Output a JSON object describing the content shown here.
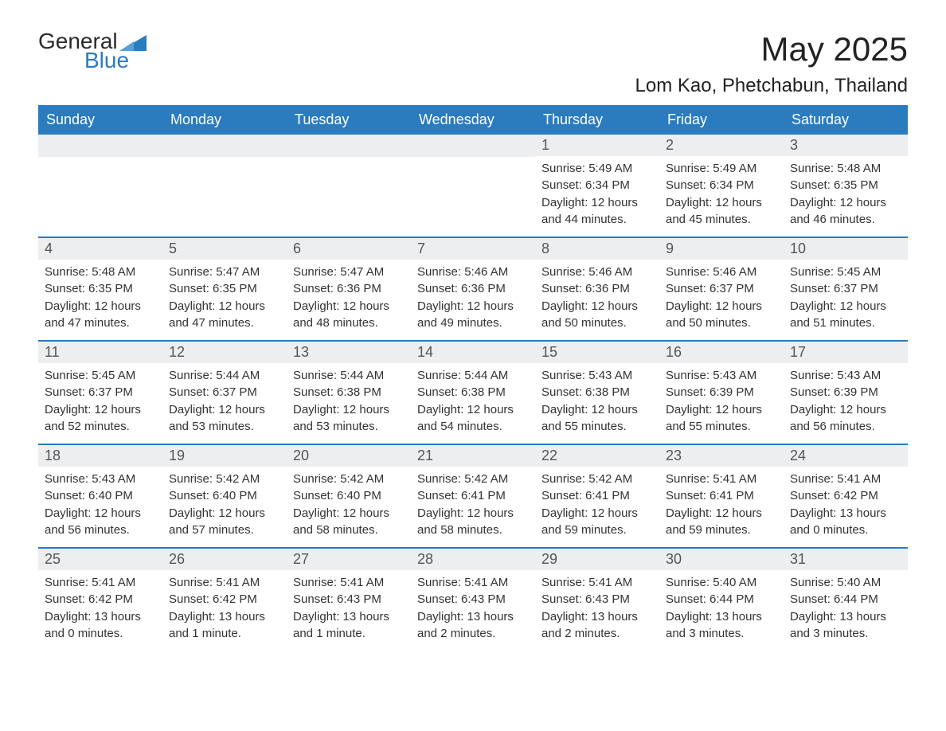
{
  "logo": {
    "text_general": "General",
    "text_blue": "Blue"
  },
  "title": "May 2025",
  "location": "Lom Kao, Phetchabun, Thailand",
  "colors": {
    "header_bg": "#2b7bbf",
    "header_text": "#ffffff",
    "daynum_bg": "#eceeef",
    "daynum_text": "#555555",
    "body_text": "#333333",
    "page_bg": "#ffffff",
    "week_border": "#2b7bbf",
    "logo_blue": "#2b7bbf"
  },
  "typography": {
    "title_fontsize": 42,
    "location_fontsize": 24,
    "dow_fontsize": 18,
    "daynum_fontsize": 18,
    "body_fontsize": 15
  },
  "days_of_week": [
    "Sunday",
    "Monday",
    "Tuesday",
    "Wednesday",
    "Thursday",
    "Friday",
    "Saturday"
  ],
  "weeks": [
    [
      null,
      null,
      null,
      null,
      {
        "n": "1",
        "sunrise": "Sunrise: 5:49 AM",
        "sunset": "Sunset: 6:34 PM",
        "dl1": "Daylight: 12 hours",
        "dl2": "and 44 minutes."
      },
      {
        "n": "2",
        "sunrise": "Sunrise: 5:49 AM",
        "sunset": "Sunset: 6:34 PM",
        "dl1": "Daylight: 12 hours",
        "dl2": "and 45 minutes."
      },
      {
        "n": "3",
        "sunrise": "Sunrise: 5:48 AM",
        "sunset": "Sunset: 6:35 PM",
        "dl1": "Daylight: 12 hours",
        "dl2": "and 46 minutes."
      }
    ],
    [
      {
        "n": "4",
        "sunrise": "Sunrise: 5:48 AM",
        "sunset": "Sunset: 6:35 PM",
        "dl1": "Daylight: 12 hours",
        "dl2": "and 47 minutes."
      },
      {
        "n": "5",
        "sunrise": "Sunrise: 5:47 AM",
        "sunset": "Sunset: 6:35 PM",
        "dl1": "Daylight: 12 hours",
        "dl2": "and 47 minutes."
      },
      {
        "n": "6",
        "sunrise": "Sunrise: 5:47 AM",
        "sunset": "Sunset: 6:36 PM",
        "dl1": "Daylight: 12 hours",
        "dl2": "and 48 minutes."
      },
      {
        "n": "7",
        "sunrise": "Sunrise: 5:46 AM",
        "sunset": "Sunset: 6:36 PM",
        "dl1": "Daylight: 12 hours",
        "dl2": "and 49 minutes."
      },
      {
        "n": "8",
        "sunrise": "Sunrise: 5:46 AM",
        "sunset": "Sunset: 6:36 PM",
        "dl1": "Daylight: 12 hours",
        "dl2": "and 50 minutes."
      },
      {
        "n": "9",
        "sunrise": "Sunrise: 5:46 AM",
        "sunset": "Sunset: 6:37 PM",
        "dl1": "Daylight: 12 hours",
        "dl2": "and 50 minutes."
      },
      {
        "n": "10",
        "sunrise": "Sunrise: 5:45 AM",
        "sunset": "Sunset: 6:37 PM",
        "dl1": "Daylight: 12 hours",
        "dl2": "and 51 minutes."
      }
    ],
    [
      {
        "n": "11",
        "sunrise": "Sunrise: 5:45 AM",
        "sunset": "Sunset: 6:37 PM",
        "dl1": "Daylight: 12 hours",
        "dl2": "and 52 minutes."
      },
      {
        "n": "12",
        "sunrise": "Sunrise: 5:44 AM",
        "sunset": "Sunset: 6:37 PM",
        "dl1": "Daylight: 12 hours",
        "dl2": "and 53 minutes."
      },
      {
        "n": "13",
        "sunrise": "Sunrise: 5:44 AM",
        "sunset": "Sunset: 6:38 PM",
        "dl1": "Daylight: 12 hours",
        "dl2": "and 53 minutes."
      },
      {
        "n": "14",
        "sunrise": "Sunrise: 5:44 AM",
        "sunset": "Sunset: 6:38 PM",
        "dl1": "Daylight: 12 hours",
        "dl2": "and 54 minutes."
      },
      {
        "n": "15",
        "sunrise": "Sunrise: 5:43 AM",
        "sunset": "Sunset: 6:38 PM",
        "dl1": "Daylight: 12 hours",
        "dl2": "and 55 minutes."
      },
      {
        "n": "16",
        "sunrise": "Sunrise: 5:43 AM",
        "sunset": "Sunset: 6:39 PM",
        "dl1": "Daylight: 12 hours",
        "dl2": "and 55 minutes."
      },
      {
        "n": "17",
        "sunrise": "Sunrise: 5:43 AM",
        "sunset": "Sunset: 6:39 PM",
        "dl1": "Daylight: 12 hours",
        "dl2": "and 56 minutes."
      }
    ],
    [
      {
        "n": "18",
        "sunrise": "Sunrise: 5:43 AM",
        "sunset": "Sunset: 6:40 PM",
        "dl1": "Daylight: 12 hours",
        "dl2": "and 56 minutes."
      },
      {
        "n": "19",
        "sunrise": "Sunrise: 5:42 AM",
        "sunset": "Sunset: 6:40 PM",
        "dl1": "Daylight: 12 hours",
        "dl2": "and 57 minutes."
      },
      {
        "n": "20",
        "sunrise": "Sunrise: 5:42 AM",
        "sunset": "Sunset: 6:40 PM",
        "dl1": "Daylight: 12 hours",
        "dl2": "and 58 minutes."
      },
      {
        "n": "21",
        "sunrise": "Sunrise: 5:42 AM",
        "sunset": "Sunset: 6:41 PM",
        "dl1": "Daylight: 12 hours",
        "dl2": "and 58 minutes."
      },
      {
        "n": "22",
        "sunrise": "Sunrise: 5:42 AM",
        "sunset": "Sunset: 6:41 PM",
        "dl1": "Daylight: 12 hours",
        "dl2": "and 59 minutes."
      },
      {
        "n": "23",
        "sunrise": "Sunrise: 5:41 AM",
        "sunset": "Sunset: 6:41 PM",
        "dl1": "Daylight: 12 hours",
        "dl2": "and 59 minutes."
      },
      {
        "n": "24",
        "sunrise": "Sunrise: 5:41 AM",
        "sunset": "Sunset: 6:42 PM",
        "dl1": "Daylight: 13 hours",
        "dl2": "and 0 minutes."
      }
    ],
    [
      {
        "n": "25",
        "sunrise": "Sunrise: 5:41 AM",
        "sunset": "Sunset: 6:42 PM",
        "dl1": "Daylight: 13 hours",
        "dl2": "and 0 minutes."
      },
      {
        "n": "26",
        "sunrise": "Sunrise: 5:41 AM",
        "sunset": "Sunset: 6:42 PM",
        "dl1": "Daylight: 13 hours",
        "dl2": "and 1 minute."
      },
      {
        "n": "27",
        "sunrise": "Sunrise: 5:41 AM",
        "sunset": "Sunset: 6:43 PM",
        "dl1": "Daylight: 13 hours",
        "dl2": "and 1 minute."
      },
      {
        "n": "28",
        "sunrise": "Sunrise: 5:41 AM",
        "sunset": "Sunset: 6:43 PM",
        "dl1": "Daylight: 13 hours",
        "dl2": "and 2 minutes."
      },
      {
        "n": "29",
        "sunrise": "Sunrise: 5:41 AM",
        "sunset": "Sunset: 6:43 PM",
        "dl1": "Daylight: 13 hours",
        "dl2": "and 2 minutes."
      },
      {
        "n": "30",
        "sunrise": "Sunrise: 5:40 AM",
        "sunset": "Sunset: 6:44 PM",
        "dl1": "Daylight: 13 hours",
        "dl2": "and 3 minutes."
      },
      {
        "n": "31",
        "sunrise": "Sunrise: 5:40 AM",
        "sunset": "Sunset: 6:44 PM",
        "dl1": "Daylight: 13 hours",
        "dl2": "and 3 minutes."
      }
    ]
  ]
}
